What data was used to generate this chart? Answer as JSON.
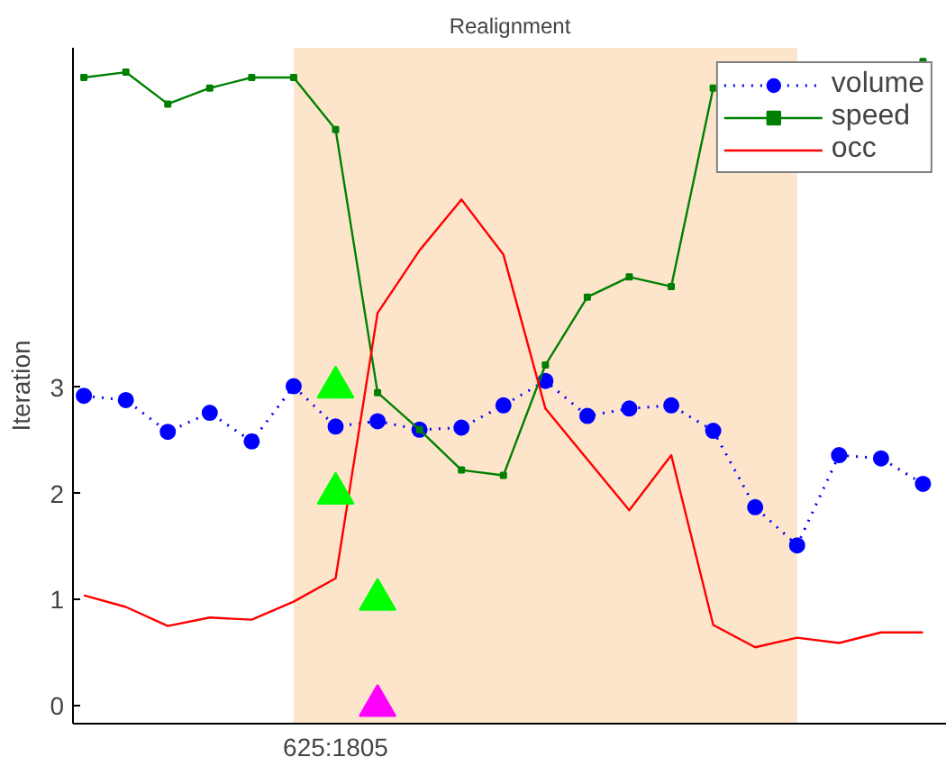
{
  "chart_data": {
    "type": "line",
    "title": "Realignment",
    "ylabel": "Iteration",
    "categories": [
      null,
      null,
      null,
      null,
      null,
      null,
      "625:1805",
      null,
      null,
      null,
      null,
      null,
      null,
      null,
      null,
      null,
      null,
      null,
      null,
      null,
      null
    ],
    "ylim": [
      -0.17,
      6.2
    ],
    "yticks": [
      0,
      1,
      2,
      3
    ],
    "grid": false,
    "legend": "top right",
    "series": [
      {
        "name": "volume",
        "color": "#0000ff",
        "marker": "circle",
        "line_style": "dotted",
        "values": [
          2.92,
          2.88,
          2.58,
          2.76,
          2.49,
          3.01,
          2.63,
          2.68,
          2.6,
          2.62,
          2.83,
          3.06,
          2.73,
          2.8,
          2.83,
          2.59,
          1.87,
          1.51,
          2.36,
          2.33,
          2.09
        ]
      },
      {
        "name": "speed",
        "color": "#008000",
        "marker": "square",
        "line_style": "solid",
        "values": [
          5.92,
          5.97,
          5.67,
          5.82,
          5.92,
          5.92,
          5.43,
          2.95,
          2.6,
          2.22,
          2.17,
          3.21,
          3.85,
          4.04,
          3.95,
          5.82,
          null,
          null,
          null,
          null,
          6.07
        ]
      },
      {
        "name": "occ",
        "color": "#ff0000",
        "marker": "none",
        "line_style": "solid",
        "values": [
          1.04,
          0.93,
          0.75,
          0.83,
          0.81,
          0.98,
          1.2,
          3.7,
          4.29,
          4.77,
          4.25,
          2.8,
          2.32,
          1.84,
          2.36,
          0.76,
          0.55,
          0.64,
          0.59,
          0.69,
          0.69
        ]
      },
      {
        "type": "scatter",
        "color": "#00ff00",
        "marker": "triangle",
        "values": [
          null,
          null,
          null,
          null,
          null,
          null,
          3,
          1,
          null,
          null,
          null,
          null,
          null,
          null,
          null,
          null,
          null,
          null,
          null,
          null,
          null
        ]
      },
      {
        "type": "scatter",
        "color": "#00ff00",
        "marker": "triangle",
        "values": [
          null,
          null,
          null,
          null,
          null,
          null,
          2,
          null,
          null,
          null,
          null,
          null,
          null,
          null,
          null,
          null,
          null,
          null,
          null,
          null,
          null
        ]
      },
      {
        "type": "scatter",
        "color": "#ff00ff",
        "marker": "triangle",
        "values": [
          null,
          null,
          null,
          null,
          null,
          null,
          null,
          0,
          null,
          null,
          null,
          null,
          null,
          null,
          null,
          null,
          null,
          null,
          null,
          null,
          null
        ]
      }
    ]
  }
}
